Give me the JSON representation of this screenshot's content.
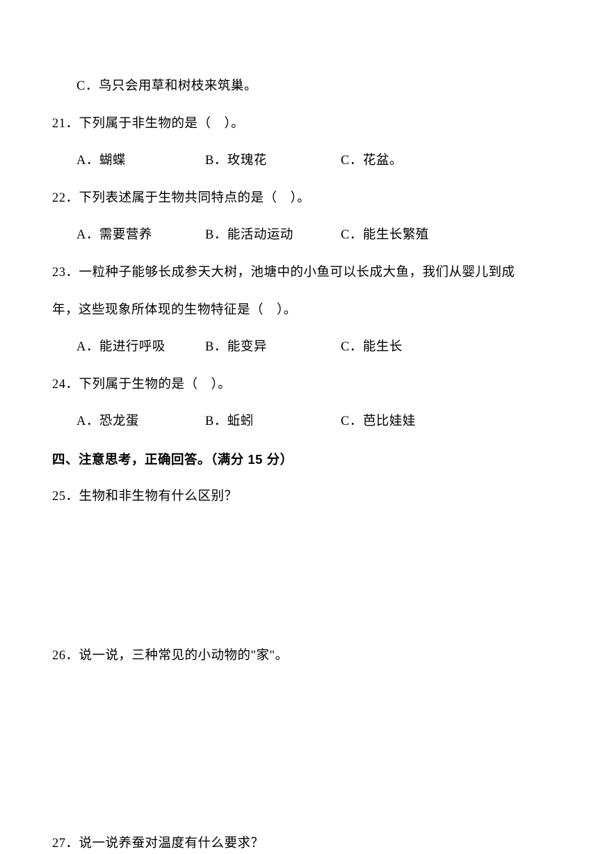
{
  "line_c": "C．鸟只会用草和树枝来筑巢。",
  "q21": {
    "stem": "21．下列属于非生物的是（　）。",
    "a": "A．蝴蝶",
    "b": "B．玫瑰花",
    "c": "C．花盆。"
  },
  "q22": {
    "stem": "22．下列表述属于生物共同特点的是（　）。",
    "a": "A．需要营养",
    "b": "B．能活动运动",
    "c": "C．能生长繁殖"
  },
  "q23": {
    "stem1": "23．一粒种子能够长成参天大树，池塘中的小鱼可以长成大鱼，我们从婴儿到成",
    "stem2": "年，这些现象所体现的生物特征是（　）。",
    "a": "A．能进行呼吸",
    "b": "B．能变异",
    "c": "C．能生长"
  },
  "q24": {
    "stem": "24．下列属于生物的是（　）。",
    "a": "A．恐龙蛋",
    "b": "B．蚯蚓",
    "c": "C．芭比娃娃"
  },
  "section4": "四、注意思考，正确回答。（满分 15 分）",
  "q25": "25．生物和非生物有什么区别？",
  "q26": "26．说一说，三种常见的小动物的\"家\"。",
  "q27": "27．说一说养蚕对温度有什么要求？"
}
